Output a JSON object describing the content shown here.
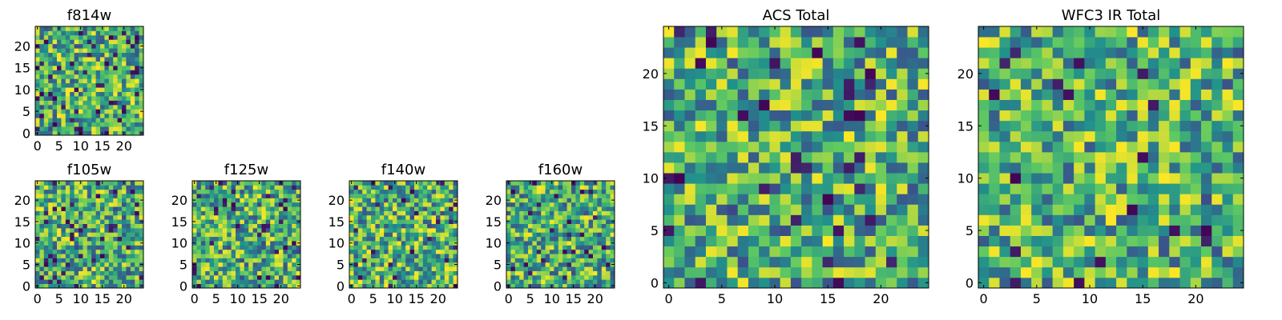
{
  "chart_data": [
    {
      "type": "heatmap",
      "title": "f814w",
      "grid": false,
      "xlim": [
        0,
        24
      ],
      "ylim": [
        0,
        24
      ],
      "xticks": [
        0,
        5,
        10,
        15,
        20
      ],
      "yticks": [
        0,
        5,
        10,
        15,
        20
      ],
      "seed": 11,
      "lowFrac": 0.07
    },
    {
      "type": "heatmap",
      "title": "f105w",
      "grid": false,
      "xlim": [
        0,
        24
      ],
      "ylim": [
        0,
        24
      ],
      "xticks": [
        0,
        5,
        10,
        15,
        20
      ],
      "yticks": [
        0,
        5,
        10,
        15,
        20
      ],
      "seed": 23,
      "lowFrac": 0.05
    },
    {
      "type": "heatmap",
      "title": "f125w",
      "grid": false,
      "xlim": [
        0,
        24
      ],
      "ylim": [
        0,
        24
      ],
      "xticks": [
        0,
        5,
        10,
        15,
        20
      ],
      "yticks": [
        0,
        5,
        10,
        15,
        20
      ],
      "seed": 37,
      "lowFrac": 0.05
    },
    {
      "type": "heatmap",
      "title": "f140w",
      "grid": false,
      "xlim": [
        0,
        24
      ],
      "ylim": [
        0,
        24
      ],
      "xticks": [
        0,
        5,
        10,
        15,
        20
      ],
      "yticks": [
        0,
        5,
        10,
        15,
        20
      ],
      "seed": 41,
      "lowFrac": 0.05
    },
    {
      "type": "heatmap",
      "title": "f160w",
      "grid": false,
      "xlim": [
        0,
        24
      ],
      "ylim": [
        0,
        24
      ],
      "xticks": [
        0,
        5,
        10,
        15,
        20
      ],
      "yticks": [
        0,
        5,
        10,
        15,
        20
      ],
      "seed": 53,
      "lowFrac": 0.05
    },
    {
      "type": "heatmap",
      "title": "ACS Total",
      "grid": false,
      "xlim": [
        0,
        24
      ],
      "ylim": [
        0,
        24
      ],
      "xticks": [
        0,
        5,
        10,
        15,
        20
      ],
      "yticks": [
        0,
        5,
        10,
        15,
        20
      ],
      "seed": 67,
      "lowFrac": 0.04
    },
    {
      "type": "heatmap",
      "title": "WFC3 IR Total",
      "grid": false,
      "xlim": [
        0,
        24
      ],
      "ylim": [
        0,
        24
      ],
      "xticks": [
        0,
        5,
        10,
        15,
        20
      ],
      "yticks": [
        0,
        5,
        10,
        15,
        20
      ],
      "seed": 79,
      "lowFrac": 0.03
    }
  ],
  "colormap": "viridis",
  "colors": [
    "#440154",
    "#3b528b",
    "#21918c",
    "#5ec962",
    "#fde725"
  ]
}
